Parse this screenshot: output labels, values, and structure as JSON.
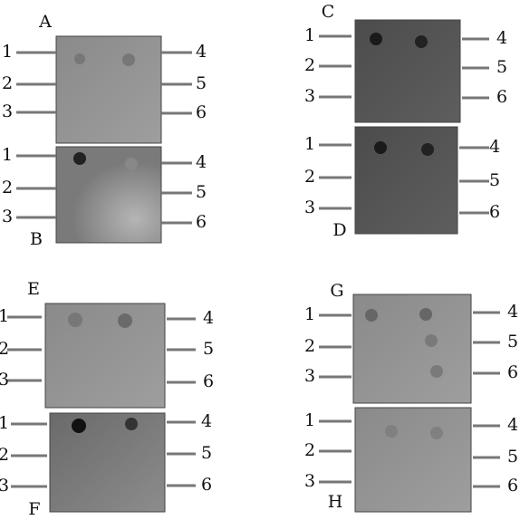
{
  "panels": [
    {
      "label": "A",
      "left_labels": [
        "1",
        "2",
        "3"
      ],
      "right_labels": [
        "4",
        "5",
        "6"
      ]
    },
    {
      "label": "B",
      "left_labels": [
        "1",
        "2",
        "3"
      ],
      "right_labels": [
        "4",
        "5",
        "6"
      ]
    },
    {
      "label": "C",
      "left_labels": [
        "1",
        "2",
        "3"
      ],
      "right_labels": [
        "4",
        "5",
        "6"
      ]
    },
    {
      "label": "D",
      "left_labels": [
        "1",
        "2",
        "3"
      ],
      "right_labels": [
        "4",
        "5",
        "6"
      ]
    },
    {
      "label": "E",
      "left_labels": [
        "1",
        "2",
        "3"
      ],
      "right_labels": [
        "4",
        "5",
        "6"
      ]
    },
    {
      "label": "F",
      "left_labels": [
        "1",
        "2",
        "3"
      ],
      "right_labels": [
        "4",
        "5",
        "6"
      ]
    },
    {
      "label": "G",
      "left_labels": [
        "1",
        "2",
        "3"
      ],
      "right_labels": [
        "4",
        "5",
        "6"
      ]
    },
    {
      "label": "H",
      "left_labels": [
        "1",
        "2",
        "3"
      ],
      "right_labels": [
        "4",
        "5",
        "6"
      ]
    }
  ]
}
